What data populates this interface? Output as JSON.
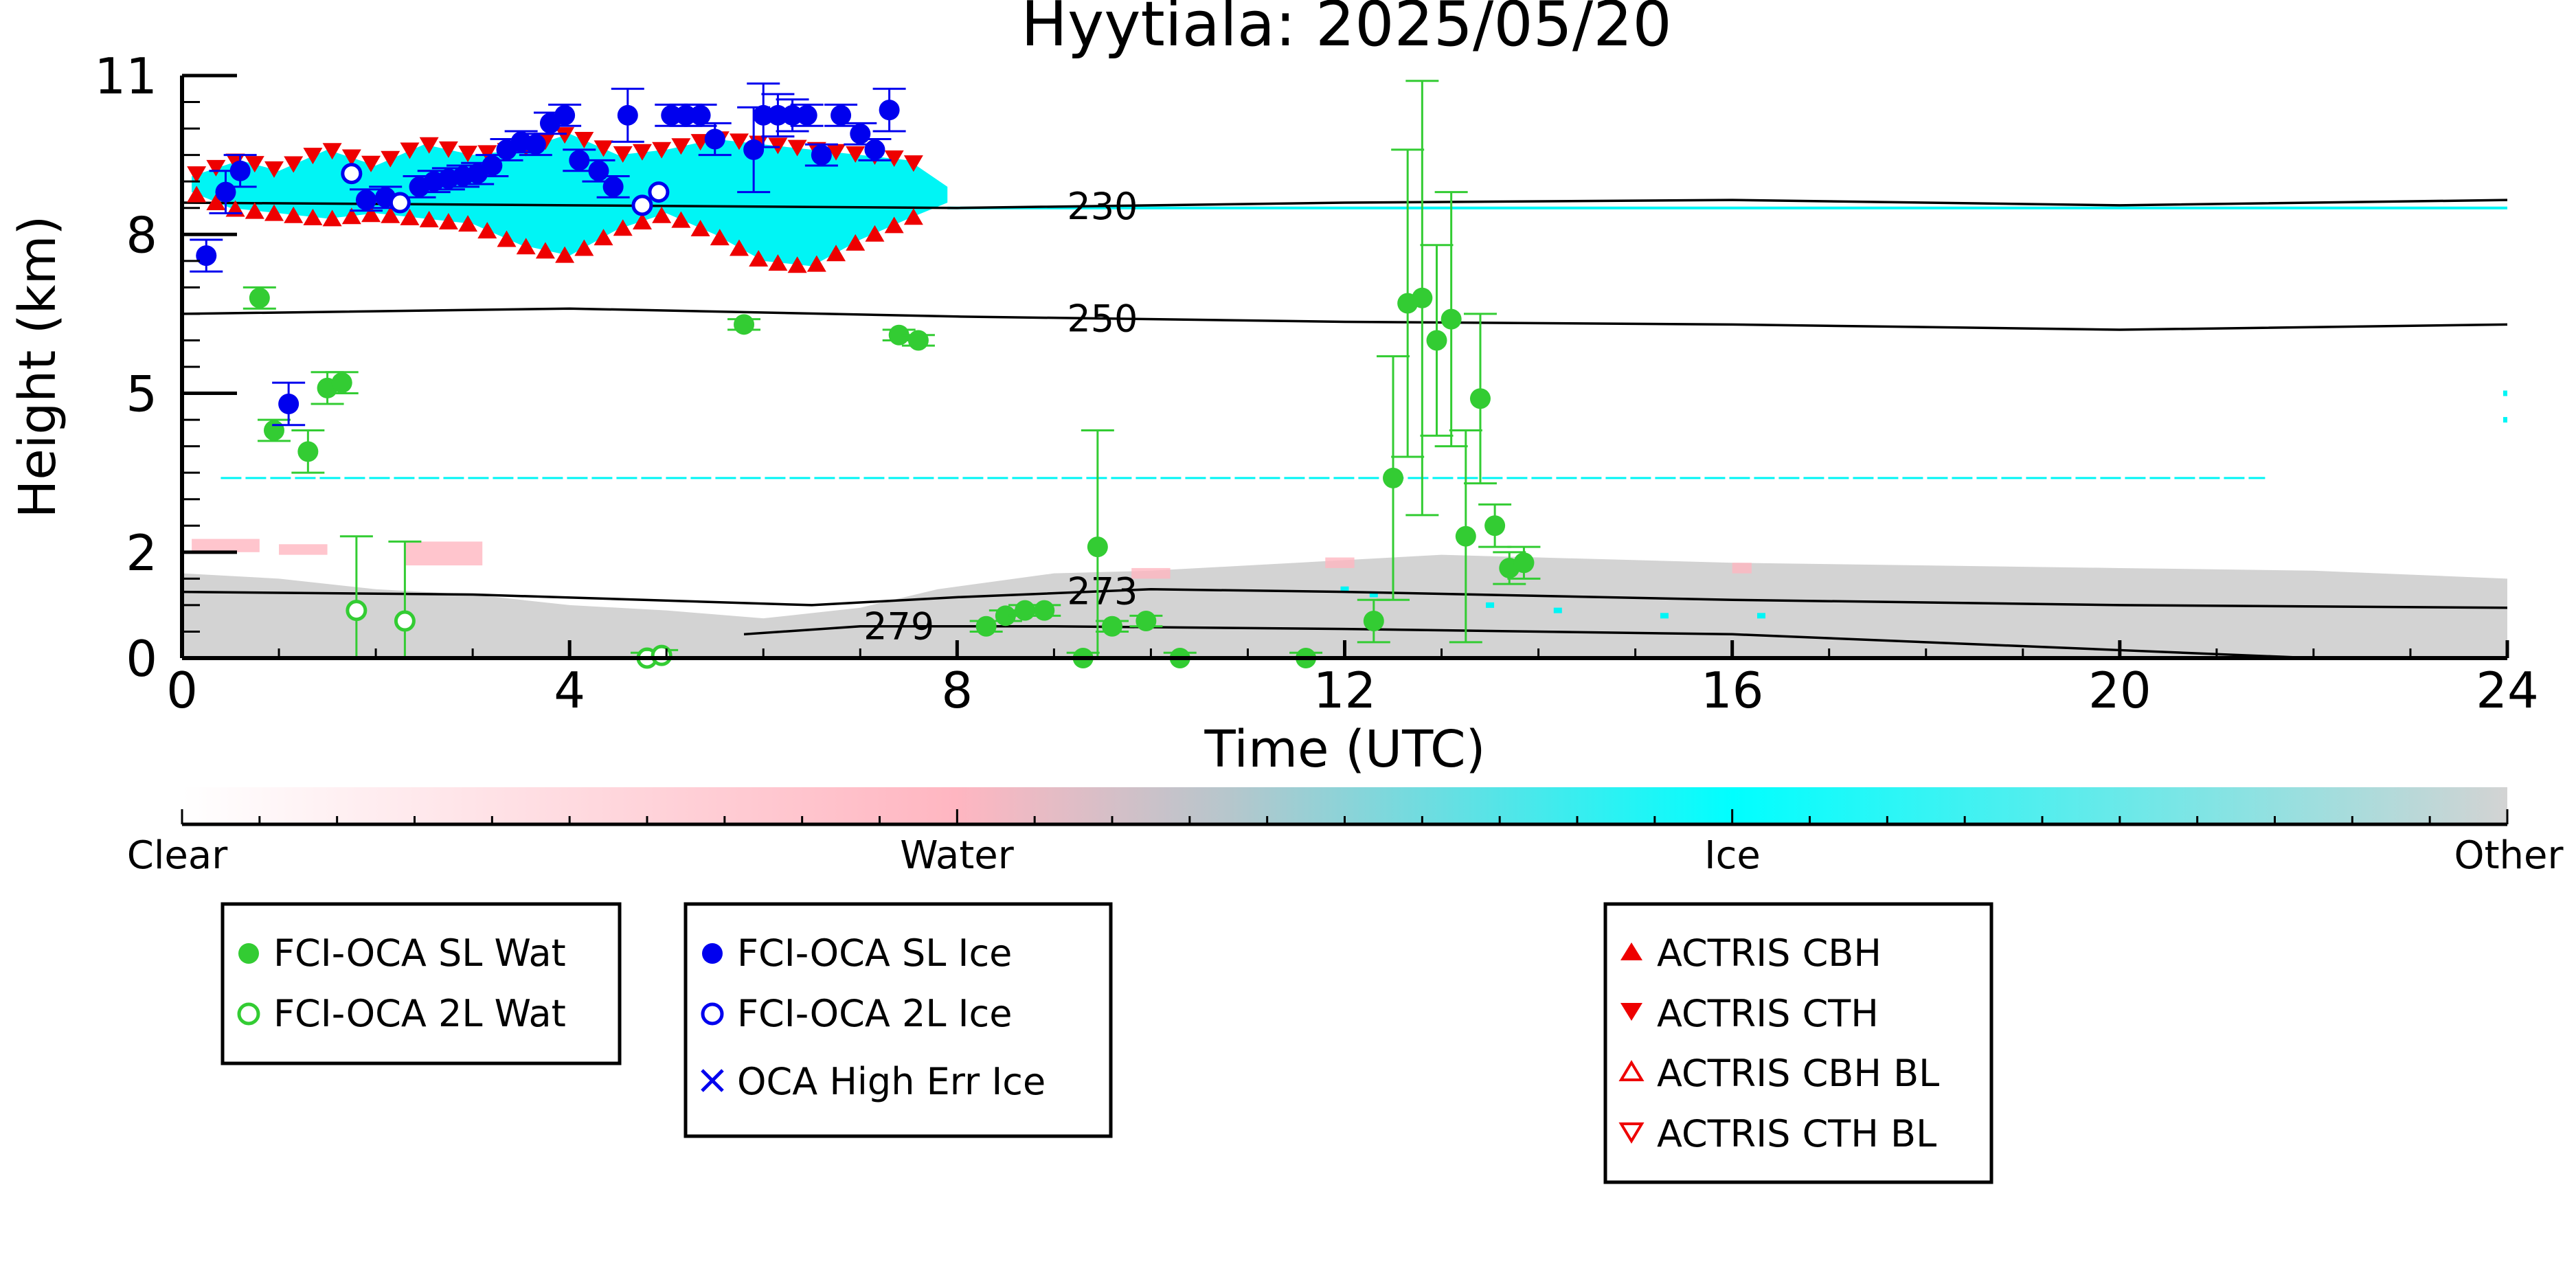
{
  "chart_data": {
    "type": "scatter",
    "title": "Hyytiala: 2025/05/20",
    "xlabel": "Time (UTC)",
    "ylabel": "Height (km)",
    "xlim": [
      0,
      24
    ],
    "ylim": [
      0,
      11
    ],
    "x_ticks": [
      0,
      4,
      8,
      12,
      16,
      20,
      24
    ],
    "x_tick_labels": [
      "0",
      "4",
      "8",
      "12",
      "16",
      "20",
      "24"
    ],
    "y_ticks": [
      0,
      2,
      5,
      8,
      11
    ],
    "y_tick_labels": [
      "0",
      "2",
      "5",
      "8",
      "11"
    ],
    "grid": false,
    "colorbar": {
      "labels": [
        "Clear",
        "Water",
        "Ice",
        "Other"
      ],
      "colors": [
        "#ffffff",
        "#ffb6c1",
        "#00ffff",
        "#d3d3d3"
      ]
    },
    "colors": {
      "water": "#33cc33",
      "ice": "#0000ee",
      "actris": "#ee0000",
      "cloud_ice": "#00f5f5",
      "cloud_water": "#ffb6c1",
      "cloud_other": "#d3d3d3"
    },
    "temperature_contours": [
      {
        "label": "230",
        "label_x": 9.5,
        "points": [
          [
            0,
            8.6
          ],
          [
            4,
            8.55
          ],
          [
            8,
            8.5
          ],
          [
            12,
            8.6
          ],
          [
            16,
            8.65
          ],
          [
            20,
            8.55
          ],
          [
            24,
            8.65
          ]
        ]
      },
      {
        "label": "250",
        "label_x": 9.5,
        "points": [
          [
            0,
            6.5
          ],
          [
            4,
            6.6
          ],
          [
            8,
            6.45
          ],
          [
            12,
            6.35
          ],
          [
            16,
            6.3
          ],
          [
            20,
            6.2
          ],
          [
            24,
            6.3
          ]
        ]
      },
      {
        "label": "273",
        "label_x": 9.5,
        "points": [
          [
            0,
            1.25
          ],
          [
            3,
            1.2
          ],
          [
            6.5,
            1.0
          ],
          [
            8,
            1.15
          ],
          [
            10,
            1.3
          ],
          [
            12,
            1.25
          ],
          [
            16,
            1.1
          ],
          [
            20,
            1.0
          ],
          [
            24,
            0.95
          ]
        ]
      },
      {
        "label": "279",
        "label_x": 7.4,
        "points": [
          [
            5.8,
            0.45
          ],
          [
            7,
            0.6
          ],
          [
            9,
            0.6
          ],
          [
            12,
            0.55
          ],
          [
            16,
            0.45
          ],
          [
            20,
            0.15
          ],
          [
            22,
            0.0
          ]
        ]
      }
    ],
    "series": [
      {
        "name": "FCI-OCA SL Wat",
        "marker": "filled-circle",
        "points": [
          {
            "x": 0.8,
            "y": 6.8,
            "err": 0.2
          },
          {
            "x": 0.95,
            "y": 4.3,
            "err": 0.2
          },
          {
            "x": 1.3,
            "y": 3.9,
            "err": 0.4
          },
          {
            "x": 1.5,
            "y": 5.1,
            "err": 0.3
          },
          {
            "x": 1.65,
            "y": 5.2,
            "err": 0.2
          },
          {
            "x": 5.8,
            "y": 6.3,
            "err": 0.1
          },
          {
            "x": 7.4,
            "y": 6.1,
            "err": 0.1
          },
          {
            "x": 7.6,
            "y": 6.0,
            "err": 0.1
          },
          {
            "x": 8.3,
            "y": 0.6,
            "err": 0.1
          },
          {
            "x": 8.5,
            "y": 0.8,
            "err": 0.1
          },
          {
            "x": 8.7,
            "y": 0.9,
            "err": 0.1
          },
          {
            "x": 8.9,
            "y": 0.9,
            "err": 0.1
          },
          {
            "x": 9.3,
            "y": 0.0,
            "err": 0.1
          },
          {
            "x": 9.45,
            "y": 2.1,
            "err": 2.2
          },
          {
            "x": 9.6,
            "y": 0.6,
            "err": 0.1
          },
          {
            "x": 9.95,
            "y": 0.7,
            "err": 0.1
          },
          {
            "x": 10.3,
            "y": 0.0,
            "err": 0.1
          },
          {
            "x": 11.6,
            "y": 0.0,
            "err": 0.1
          },
          {
            "x": 12.3,
            "y": 0.7,
            "err": 0.4
          },
          {
            "x": 12.5,
            "y": 3.4,
            "err": 2.3
          },
          {
            "x": 12.65,
            "y": 6.7,
            "err": 2.9
          },
          {
            "x": 12.8,
            "y": 6.8,
            "err": 4.1
          },
          {
            "x": 12.95,
            "y": 6.0,
            "err": 1.8
          },
          {
            "x": 13.1,
            "y": 6.4,
            "err": 2.4
          },
          {
            "x": 13.25,
            "y": 2.3,
            "err": 2.0
          },
          {
            "x": 13.4,
            "y": 4.9,
            "err": 1.6
          },
          {
            "x": 13.55,
            "y": 2.5,
            "err": 0.4
          },
          {
            "x": 13.7,
            "y": 1.7,
            "err": 0.3
          },
          {
            "x": 13.85,
            "y": 1.8,
            "err": 0.3
          }
        ]
      },
      {
        "name": "FCI-OCA 2L Wat",
        "marker": "open-circle",
        "points": [
          {
            "x": 1.8,
            "y": 0.9,
            "err": 1.4
          },
          {
            "x": 2.3,
            "y": 0.7,
            "err": 1.5
          },
          {
            "x": 4.8,
            "y": 0.0,
            "err": 0.1
          },
          {
            "x": 4.95,
            "y": 0.05,
            "err": 0.1
          }
        ]
      },
      {
        "name": "FCI-OCA SL Ice",
        "marker": "filled-circle",
        "points": [
          {
            "x": 0.25,
            "y": 7.6,
            "err": 0.3
          },
          {
            "x": 0.45,
            "y": 8.8,
            "err": 0.4
          },
          {
            "x": 0.6,
            "y": 9.2,
            "err": 0.3
          },
          {
            "x": 1.1,
            "y": 4.8,
            "err": 0.4
          },
          {
            "x": 1.9,
            "y": 8.65,
            "err": 0.2
          },
          {
            "x": 2.1,
            "y": 8.7,
            "err": 0.2
          },
          {
            "x": 2.45,
            "y": 8.9,
            "err": 0.2
          },
          {
            "x": 2.6,
            "y": 9.0,
            "err": 0.2
          },
          {
            "x": 2.75,
            "y": 9.05,
            "err": 0.2
          },
          {
            "x": 2.9,
            "y": 9.1,
            "err": 0.2
          },
          {
            "x": 3.05,
            "y": 9.15,
            "err": 0.2
          },
          {
            "x": 3.2,
            "y": 9.3,
            "err": 0.2
          },
          {
            "x": 3.35,
            "y": 9.6,
            "err": 0.2
          },
          {
            "x": 3.5,
            "y": 9.75,
            "err": 0.2
          },
          {
            "x": 3.65,
            "y": 9.7,
            "err": 0.2
          },
          {
            "x": 3.8,
            "y": 10.1,
            "err": 0.2
          },
          {
            "x": 3.95,
            "y": 10.25,
            "err": 0.2
          },
          {
            "x": 4.1,
            "y": 9.4,
            "err": 0.2
          },
          {
            "x": 4.3,
            "y": 9.2,
            "err": 0.2
          },
          {
            "x": 4.45,
            "y": 8.9,
            "err": 0.2
          },
          {
            "x": 4.6,
            "y": 10.25,
            "err": 0.5
          },
          {
            "x": 5.05,
            "y": 10.25,
            "err": 0.2
          },
          {
            "x": 5.2,
            "y": 10.25,
            "err": 0.2
          },
          {
            "x": 5.35,
            "y": 10.25,
            "err": 0.2
          },
          {
            "x": 5.5,
            "y": 9.8,
            "err": 0.3
          },
          {
            "x": 5.9,
            "y": 9.6,
            "err": 0.8
          },
          {
            "x": 6.0,
            "y": 10.25,
            "err": 0.6
          },
          {
            "x": 6.15,
            "y": 10.25,
            "err": 0.4
          },
          {
            "x": 6.3,
            "y": 10.25,
            "err": 0.3
          },
          {
            "x": 6.45,
            "y": 10.25,
            "err": 0.2
          },
          {
            "x": 6.6,
            "y": 9.5,
            "err": 0.2
          },
          {
            "x": 6.8,
            "y": 10.25,
            "err": 0.2
          },
          {
            "x": 7.0,
            "y": 9.9,
            "err": 0.2
          },
          {
            "x": 7.15,
            "y": 9.6,
            "err": 0.2
          },
          {
            "x": 7.3,
            "y": 10.35,
            "err": 0.4
          }
        ]
      },
      {
        "name": "FCI-OCA 2L Ice",
        "marker": "open-circle",
        "points": [
          {
            "x": 1.75,
            "y": 9.15,
            "err": 0.0
          },
          {
            "x": 2.25,
            "y": 8.6,
            "err": 0.0
          },
          {
            "x": 4.75,
            "y": 8.55,
            "err": 0.0
          },
          {
            "x": 4.92,
            "y": 8.8,
            "err": 0.0
          }
        ]
      },
      {
        "name": "OCA High Err Ice",
        "marker": "x",
        "points": []
      },
      {
        "name": "ACTRIS CBH",
        "marker": "filled-triangle-up",
        "points": []
      },
      {
        "name": "ACTRIS CTH",
        "marker": "filled-triangle-down",
        "points": []
      },
      {
        "name": "ACTRIS CBH BL",
        "marker": "open-triangle-up",
        "points": []
      },
      {
        "name": "ACTRIS CTH BL",
        "marker": "open-triangle-down",
        "points": []
      }
    ]
  }
}
